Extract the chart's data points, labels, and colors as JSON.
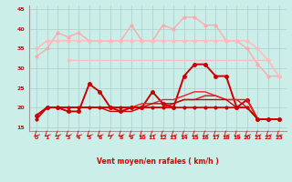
{
  "xlabel": "Vent moyen/en rafales ( km/h )",
  "x": [
    0,
    1,
    2,
    3,
    4,
    5,
    6,
    7,
    8,
    9,
    10,
    11,
    12,
    13,
    14,
    15,
    16,
    17,
    18,
    19,
    20,
    21,
    22,
    23
  ],
  "background_color": "#cbeee9",
  "grid_color": "#aacccc",
  "text_color": "#dd0000",
  "ylim": [
    14,
    46
  ],
  "yticks": [
    15,
    20,
    25,
    30,
    35,
    40,
    45
  ],
  "series": [
    {
      "label": "rafales_top",
      "color": "#ffaaaa",
      "linewidth": 1.0,
      "marker": "o",
      "markersize": 2.0,
      "values": [
        33,
        35,
        39,
        38,
        39,
        37,
        37,
        37,
        37,
        41,
        37,
        37,
        41,
        40,
        43,
        43,
        41,
        41,
        37,
        37,
        35,
        31,
        28,
        28
      ]
    },
    {
      "label": "rafales_flat",
      "color": "#ffbbbb",
      "linewidth": 1.0,
      "marker": "o",
      "markersize": 2.0,
      "values": [
        35,
        37,
        37,
        37,
        37,
        37,
        37,
        37,
        37,
        37,
        37,
        37,
        37,
        37,
        37,
        37,
        37,
        37,
        37,
        37,
        37,
        35,
        32,
        28
      ]
    },
    {
      "label": "rafales_medium",
      "color": "#ffbbbb",
      "linewidth": 1.0,
      "marker": "o",
      "markersize": 2.0,
      "values": [
        null,
        null,
        null,
        32,
        null,
        null,
        null,
        null,
        null,
        null,
        null,
        null,
        null,
        null,
        null,
        null,
        null,
        null,
        null,
        null,
        null,
        null,
        32,
        28
      ]
    },
    {
      "label": "vent_dark_marker",
      "color": "#cc0000",
      "linewidth": 1.4,
      "marker": "o",
      "markersize": 2.5,
      "values": [
        18,
        20,
        20,
        19,
        19,
        26,
        24,
        20,
        19,
        20,
        20,
        24,
        21,
        20,
        28,
        31,
        31,
        28,
        28,
        20,
        22,
        17,
        17,
        17
      ]
    },
    {
      "label": "vent_flat1",
      "color": "#dd1111",
      "linewidth": 1.0,
      "marker": null,
      "markersize": 0,
      "values": [
        18,
        20,
        20,
        20,
        20,
        20,
        20,
        20,
        20,
        20,
        20,
        20,
        20,
        21,
        22,
        22,
        23,
        23,
        22,
        22,
        20,
        17,
        17,
        17
      ]
    },
    {
      "label": "vent_flat2",
      "color": "#ee2222",
      "linewidth": 1.0,
      "marker": null,
      "markersize": 0,
      "values": [
        18,
        20,
        20,
        20,
        20,
        20,
        20,
        20,
        20,
        20,
        21,
        21,
        22,
        22,
        23,
        24,
        24,
        23,
        22,
        22,
        22,
        17,
        17,
        17
      ]
    },
    {
      "label": "vent_flat3",
      "color": "#cc0000",
      "linewidth": 1.0,
      "marker": null,
      "markersize": 0,
      "values": [
        18,
        20,
        20,
        20,
        20,
        20,
        20,
        19,
        19,
        19,
        20,
        21,
        21,
        21,
        22,
        22,
        22,
        22,
        22,
        20,
        20,
        17,
        17,
        17
      ]
    },
    {
      "label": "baseline_dark",
      "color": "#cc0000",
      "linewidth": 1.2,
      "marker": "o",
      "markersize": 2.0,
      "values": [
        17,
        20,
        20,
        20,
        20,
        20,
        20,
        20,
        20,
        20,
        20,
        20,
        20,
        20,
        20,
        20,
        20,
        20,
        20,
        20,
        20,
        17,
        17,
        17
      ]
    }
  ],
  "arrow_color": "#cc0000",
  "font_color": "#dd0000"
}
